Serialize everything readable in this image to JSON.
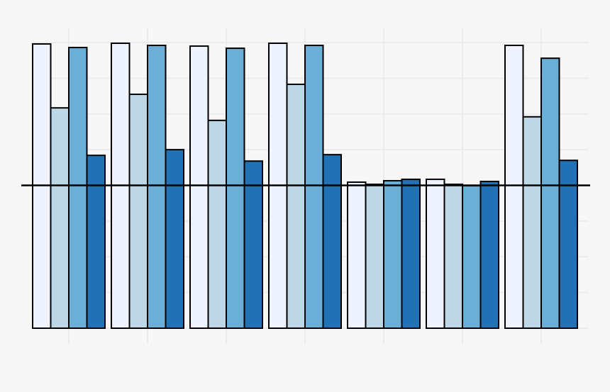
{
  "chart_data": {
    "type": "bar",
    "categories": [
      null,
      null,
      null,
      null,
      null,
      null,
      null
    ],
    "series": [
      {
        "color": "#eff3ff",
        "values": [
          7.96,
          7.98,
          7.9,
          7.98,
          4.09,
          4.17,
          7.92
        ]
      },
      {
        "color": "#bdd7e7",
        "values": [
          6.17,
          6.55,
          5.82,
          6.83,
          4.03,
          4.03,
          5.92
        ]
      },
      {
        "color": "#6baed6",
        "values": [
          7.86,
          7.92,
          7.84,
          7.92,
          4.13,
          3.99,
          7.56
        ]
      },
      {
        "color": "#2171b5",
        "values": [
          4.84,
          5.0,
          4.68,
          4.86,
          4.17,
          4.11,
          4.7
        ]
      }
    ],
    "ylim": [
      0,
      8
    ],
    "yticks": [
      0,
      1,
      2,
      3,
      4,
      5,
      6,
      7,
      8
    ],
    "grid": true,
    "hline": 4
  }
}
